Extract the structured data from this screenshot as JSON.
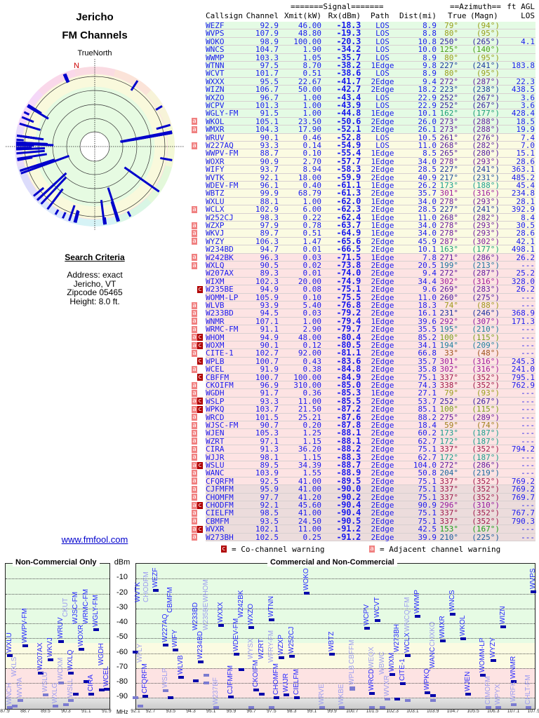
{
  "header": {
    "title_line1": "Jericho",
    "title_line2": "FM Channels",
    "north_label": "TrueNorth",
    "north_marker": "N"
  },
  "search": {
    "heading": "Search Criteria",
    "lines": [
      "Address: exact",
      "Jericho, VT",
      "Zipcode 05465",
      "Height: 8.0 ft."
    ]
  },
  "link": {
    "label": "www.fmfool.com"
  },
  "table": {
    "group_signal": "=======Signal=======",
    "group_azimuth": "==Azimuth==",
    "group_agl": "ft AGL",
    "columns": [
      "Callsign",
      "Channel",
      "Xmit(kW)",
      "Rx(dBm)",
      "Path",
      "Dist(mi)",
      "True",
      "(Magn)",
      "LOS"
    ],
    "rows": [
      [
        "WEZF",
        "92.9",
        "46.00",
        "-18.3",
        "LOS",
        "8.9",
        "79°",
        "(94°)",
        "",
        ""
      ],
      [
        "WVPS",
        "107.9",
        "48.80",
        "-19.3",
        "LOS",
        "8.8",
        "80°",
        "(95°)",
        "",
        ""
      ],
      [
        "WOKO",
        "98.9",
        "100.00",
        "-20.3",
        "LOS",
        "10.8",
        "250°",
        "(265°)",
        "4.1",
        ""
      ],
      [
        "WNCS",
        "104.7",
        "1.90",
        "-34.2",
        "LOS",
        "10.0",
        "125°",
        "(140°)",
        "",
        ""
      ],
      [
        "WWMP",
        "103.3",
        "1.05",
        "-35.7",
        "LOS",
        "8.9",
        "80°",
        "(95°)",
        "",
        ""
      ],
      [
        "WTNN",
        "97.5",
        "8.70",
        "-38.2",
        "1Edge",
        "9.8",
        "227°",
        "(241°)",
        "183.8",
        ""
      ],
      [
        "WCVT",
        "101.7",
        "0.51",
        "-38.6",
        "LOS",
        "8.9",
        "80°",
        "(95°)",
        "",
        ""
      ],
      [
        "WXXX",
        "95.5",
        "22.67",
        "-41.7",
        "2Edge",
        "9.4",
        "272°",
        "(287°)",
        "22.3",
        ""
      ],
      [
        "WIZN",
        "106.7",
        "50.00",
        "-42.7",
        "2Edge",
        "18.2",
        "223°",
        "(238°)",
        "438.5",
        ""
      ],
      [
        "WXZO",
        "96.7",
        "1.00",
        "-43.4",
        "LOS",
        "22.9",
        "252°",
        "(267°)",
        "3.6",
        ""
      ],
      [
        "WCPV",
        "101.3",
        "1.00",
        "-43.9",
        "LOS",
        "22.9",
        "252°",
        "(267°)",
        "3.6",
        ""
      ],
      [
        "WGLY-FM",
        "91.5",
        "1.00",
        "-44.8",
        "1Edge",
        "10.1",
        "162°",
        "(177°)",
        "428.4",
        ""
      ],
      [
        "WKOL",
        "105.1",
        "23.50",
        "-50.6",
        "2Edge",
        "26.0",
        "273°",
        "(288°)",
        "18.5",
        "a"
      ],
      [
        "WMXR",
        "104.3",
        "17.90",
        "-52.1",
        "2Edge",
        "26.1",
        "273°",
        "(288°)",
        "19.9",
        "a"
      ],
      [
        "WRUV",
        "90.1",
        "0.46",
        "-52.8",
        "LOS",
        "10.5",
        "261°",
        "(276°)",
        "7.4",
        ""
      ],
      [
        "W227AQ",
        "93.3",
        "0.14",
        "-54.9",
        "LOS",
        "11.0",
        "268°",
        "(282°)",
        "7.0",
        "a"
      ],
      [
        "WWPV-FM",
        "88.7",
        "0.10",
        "-55.4",
        "1Edge",
        "8.5",
        "265°",
        "(280°)",
        "15.1",
        ""
      ],
      [
        "WOXR",
        "90.9",
        "2.70",
        "-57.7",
        "1Edge",
        "34.0",
        "278°",
        "(293°)",
        "28.6",
        ""
      ],
      [
        "WIFY",
        "93.7",
        "8.94",
        "-58.3",
        "2Edge",
        "28.5",
        "227°",
        "(241°)",
        "363.1",
        ""
      ],
      [
        "WVTK",
        "92.1",
        "18.00",
        "-59.9",
        "2Edge",
        "40.9",
        "217°",
        "(231°)",
        "485.2",
        ""
      ],
      [
        "WDEV-FM",
        "96.1",
        "0.40",
        "-61.1",
        "1Edge",
        "26.2",
        "173°",
        "(188°)",
        "45.4",
        ""
      ],
      [
        "WBTZ",
        "99.9",
        "68.79",
        "-61.3",
        "2Edge",
        "35.7",
        "301°",
        "(316°)",
        "234.8",
        ""
      ],
      [
        "WXLU",
        "88.1",
        "1.00",
        "-62.0",
        "1Edge",
        "34.0",
        "278°",
        "(293°)",
        "28.1",
        ""
      ],
      [
        "WCLX",
        "102.9",
        "6.00",
        "-62.3",
        "2Edge",
        "28.5",
        "227°",
        "(241°)",
        "392.9",
        "a"
      ],
      [
        "W252CJ",
        "98.3",
        "0.22",
        "-62.4",
        "1Edge",
        "11.0",
        "268°",
        "(282°)",
        "8.4",
        ""
      ],
      [
        "WZXP",
        "97.9",
        "0.78",
        "-63.7",
        "1Edge",
        "34.0",
        "278°",
        "(293°)",
        "30.5",
        "a"
      ],
      [
        "WKVJ",
        "89.7",
        "0.51",
        "-64.9",
        "1Edge",
        "34.0",
        "278°",
        "(293°)",
        "28.6",
        "a"
      ],
      [
        "WYZY",
        "106.3",
        "1.47",
        "-65.6",
        "2Edge",
        "45.9",
        "287°",
        "(302°)",
        "42.1",
        "a"
      ],
      [
        "W234BD",
        "94.7",
        "0.01",
        "-66.5",
        "2Edge",
        "10.1",
        "163°",
        "(177°)",
        "498.1",
        ""
      ],
      [
        "W242BK",
        "96.3",
        "0.03",
        "-71.5",
        "1Edge",
        "7.8",
        "271°",
        "(286°)",
        "26.2",
        "a"
      ],
      [
        "WXLQ",
        "90.5",
        "0.02",
        "-73.8",
        "2Edge",
        "20.5",
        "199°",
        "(213°)",
        "---",
        "a"
      ],
      [
        "W207AX",
        "89.3",
        "0.01",
        "-74.0",
        "2Edge",
        "9.4",
        "272°",
        "(287°)",
        "25.2",
        ""
      ],
      [
        "WIXM",
        "102.3",
        "20.00",
        "-74.9",
        "2Edge",
        "34.4",
        "302°",
        "(316°)",
        "328.0",
        ""
      ],
      [
        "W235BE",
        "94.9",
        "0.08",
        "-75.1",
        "2Edge",
        "9.6",
        "269°",
        "(283°)",
        "26.2",
        "c"
      ],
      [
        "WOMM-LP",
        "105.9",
        "0.10",
        "-75.5",
        "2Edge",
        "11.0",
        "260°",
        "(275°)",
        "---",
        ""
      ],
      [
        "WLVB",
        "93.9",
        "5.40",
        "-76.8",
        "2Edge",
        "18.3",
        "74°",
        "(88°)",
        "---",
        "a"
      ],
      [
        "W233BD",
        "94.5",
        "0.03",
        "-79.2",
        "2Edge",
        "16.1",
        "231°",
        "(246°)",
        "368.9",
        "a"
      ],
      [
        "WNMR",
        "107.1",
        "1.00",
        "-79.4",
        "1Edge",
        "39.6",
        "292°",
        "(307°)",
        "171.3",
        "a"
      ],
      [
        "WRMC-FM",
        "91.1",
        "2.90",
        "-79.7",
        "2Edge",
        "35.5",
        "195°",
        "(210°)",
        "---",
        "a"
      ],
      [
        "WHOM",
        "94.9",
        "48.00",
        "-80.4",
        "2Edge",
        "85.2",
        "100°",
        "(115°)",
        "---",
        "ac"
      ],
      [
        "WOXM",
        "90.1",
        "0.12",
        "-80.5",
        "2Edge",
        "34.1",
        "194°",
        "(209°)",
        "---",
        "ac"
      ],
      [
        "CITE-1",
        "102.7",
        "92.00",
        "-81.1",
        "2Edge",
        "66.8",
        "33°",
        "(48°)",
        "---",
        "a"
      ],
      [
        "WPLB",
        "100.7",
        "0.43",
        "-83.6",
        "2Edge",
        "35.7",
        "301°",
        "(316°)",
        "245.3",
        "c"
      ],
      [
        "WCEL",
        "91.9",
        "0.38",
        "-84.8",
        "2Edge",
        "35.8",
        "302°",
        "(316°)",
        "241.0",
        "a"
      ],
      [
        "CBFFM",
        "100.7",
        "100.00",
        "-84.9",
        "2Edge",
        "75.1",
        "337°",
        "(352°)",
        "795.1",
        "c"
      ],
      [
        "CKOIFM",
        "96.9",
        "310.00",
        "-85.0",
        "2Edge",
        "74.3",
        "338°",
        "(352°)",
        "762.9",
        "a"
      ],
      [
        "WGDH",
        "91.7",
        "0.36",
        "-85.3",
        "1Edge",
        "27.1",
        "79°",
        "(93°)",
        "---",
        "a"
      ],
      [
        "WSLP",
        "93.3",
        "11.00",
        "-85.5",
        "2Edge",
        "53.7",
        "252°",
        "(267°)",
        "---",
        "ac"
      ],
      [
        "WPKQ",
        "103.7",
        "21.50",
        "-87.2",
        "2Edge",
        "85.1",
        "100°",
        "(115°)",
        "---",
        "ac"
      ],
      [
        "WRCD",
        "101.5",
        "25.21",
        "-87.6",
        "2Edge",
        "88.2",
        "275°",
        "(289°)",
        "---",
        "a"
      ],
      [
        "WJSC-FM",
        "90.7",
        "0.20",
        "-87.8",
        "2Edge",
        "18.4",
        "59°",
        "(74°)",
        "---",
        "a"
      ],
      [
        "WJEN",
        "105.3",
        "1.25",
        "-88.1",
        "2Edge",
        "60.2",
        "173°",
        "(187°)",
        "---",
        "a"
      ],
      [
        "WZRT",
        "97.1",
        "1.15",
        "-88.1",
        "2Edge",
        "62.7",
        "172°",
        "(187°)",
        "---",
        "a"
      ],
      [
        "CIRA",
        "91.3",
        "36.20",
        "-88.2",
        "2Edge",
        "75.1",
        "337°",
        "(352°)",
        "794.2",
        "a"
      ],
      [
        "WJJR",
        "98.1",
        "1.15",
        "-88.3",
        "2Edge",
        "62.7",
        "172°",
        "(187°)",
        "---",
        "a"
      ],
      [
        "WSLU",
        "89.5",
        "34.39",
        "-88.7",
        "2Edge",
        "104.0",
        "272°",
        "(286°)",
        "---",
        "ac"
      ],
      [
        "WANC",
        "103.9",
        "1.55",
        "-88.9",
        "2Edge",
        "50.8",
        "204°",
        "(219°)",
        "---",
        "a"
      ],
      [
        "CFQRFM",
        "92.5",
        "41.00",
        "-89.5",
        "2Edge",
        "75.1",
        "337°",
        "(352°)",
        "769.2",
        "a"
      ],
      [
        "CJFMFM",
        "95.9",
        "41.00",
        "-90.0",
        "2Edge",
        "75.1",
        "337°",
        "(352°)",
        "769.2",
        "a"
      ],
      [
        "CHOMFM",
        "97.7",
        "41.20",
        "-90.2",
        "2Edge",
        "75.1",
        "337°",
        "(352°)",
        "769.7",
        "a"
      ],
      [
        "CHODFM",
        "92.1",
        "45.60",
        "-90.4",
        "2Edge",
        "90.9",
        "296°",
        "(310°)",
        "---",
        "ac"
      ],
      [
        "CIELFM",
        "98.5",
        "41.00",
        "-90.4",
        "2Edge",
        "75.1",
        "337°",
        "(352°)",
        "767.7",
        "a"
      ],
      [
        "CBMFM",
        "93.5",
        "24.50",
        "-90.5",
        "2Edge",
        "75.1",
        "337°",
        "(352°)",
        "790.3",
        "a"
      ],
      [
        "WVXR",
        "102.1",
        "11.00",
        "-91.2",
        "2Edge",
        "42.5",
        "153°",
        "(167°)",
        "---",
        "ac"
      ],
      [
        "W273BH",
        "102.5",
        "0.25",
        "-91.2",
        "2Edge",
        "39.9",
        "210°",
        "(225°)",
        "---",
        "a"
      ]
    ]
  },
  "legend": {
    "co_symbol": "c",
    "co_label": "= Co-channel warning",
    "adj_symbol": "a",
    "adj_label": "= Adjacent channel warning"
  },
  "colors": {
    "text_blue": "#1a1aee",
    "bar_blue": "#0000cc",
    "co_channel": "#b00000",
    "adjacent": "#f08080",
    "strong_bg": "#e4fbe4",
    "medium_bg": "#fbfbe2",
    "weak_bg": "#fde3e3",
    "very_weak_bg": "#ecdcdc"
  },
  "chart_data": {
    "type": "scatter",
    "ylabel": "dBm",
    "xunit": "MHz",
    "ylim": [
      -98,
      0
    ],
    "yticks": [
      "-10",
      "-20",
      "-30",
      "-40",
      "-50",
      "-60",
      "-70",
      "-80",
      "-90"
    ],
    "panels": [
      {
        "title": "Non-Commercial Only",
        "xlim": [
          87.9,
          91.9
        ],
        "xticks": [
          "87.9",
          "88.7",
          "89.5",
          "90.3",
          "91.1",
          "91.9"
        ]
      },
      {
        "title": "Commercial and Non-Commercial",
        "xlim": [
          92.1,
          107.9
        ],
        "xticks": [
          "92.1",
          "92.7",
          "93.5",
          "94.3",
          "95.1",
          "95.9",
          "96.7",
          "97.5",
          "98.3",
          "99.1",
          "99.9",
          "100.7",
          "101.5",
          "102.3",
          "103.1",
          "103.9",
          "104.7",
          "105.5",
          "106.3",
          "107.1",
          "107.9"
        ]
      }
    ],
    "points": [
      [
        "WEZF",
        92.9,
        -18.3,
        0
      ],
      [
        "WVPS",
        107.9,
        -19.3,
        0
      ],
      [
        "WOKO",
        98.9,
        -20.3,
        0
      ],
      [
        "WNCS",
        104.7,
        -34.2,
        0
      ],
      [
        "WWMP",
        103.3,
        -35.7,
        0
      ],
      [
        "WTNN",
        97.5,
        -38.2,
        0
      ],
      [
        "WCVT",
        101.7,
        -38.6,
        0
      ],
      [
        "WXXX",
        95.5,
        -41.7,
        0
      ],
      [
        "WIZN",
        106.7,
        -42.7,
        0
      ],
      [
        "WXZO",
        96.7,
        -43.4,
        0
      ],
      [
        "WCPV",
        101.3,
        -43.9,
        0
      ],
      [
        "WGLY-FM",
        91.5,
        -44.8,
        0
      ],
      [
        "WKOL",
        105.1,
        -50.6,
        0
      ],
      [
        "WMXR",
        104.3,
        -52.1,
        0
      ],
      [
        "WRUV",
        90.1,
        -52.8,
        0
      ],
      [
        "W227AQ",
        93.3,
        -54.9,
        0
      ],
      [
        "WWPV-FM",
        88.7,
        -55.4,
        0
      ],
      [
        "WOXR",
        90.9,
        -57.7,
        0
      ],
      [
        "WIFY",
        93.7,
        -58.3,
        0
      ],
      [
        "WVTK",
        92.1,
        -59.9,
        0
      ],
      [
        "WDEV-FM",
        96.1,
        -61.1,
        0
      ],
      [
        "WBTZ",
        99.9,
        -61.3,
        0
      ],
      [
        "WXLU",
        88.1,
        -62.0,
        0
      ],
      [
        "WCLX",
        102.9,
        -62.3,
        0
      ],
      [
        "W252CJ",
        98.3,
        -62.4,
        0
      ],
      [
        "WZXP",
        97.9,
        -63.7,
        0
      ],
      [
        "WKVJ",
        89.7,
        -64.9,
        0
      ],
      [
        "WYZY",
        106.3,
        -65.6,
        0
      ],
      [
        "W234BD",
        94.7,
        -66.5,
        0
      ],
      [
        "W242BK",
        96.3,
        -71.5,
        0
      ],
      [
        "WXLQ",
        90.5,
        -73.8,
        0
      ],
      [
        "W207AX",
        89.3,
        -74.0,
        0
      ],
      [
        "WIXM",
        102.3,
        -74.9,
        0
      ],
      [
        "W235BE",
        94.9,
        -75.1,
        1
      ],
      [
        "WOMM-LP",
        105.9,
        -75.5,
        0
      ],
      [
        "WLVB",
        93.9,
        -76.8,
        0
      ],
      [
        "W233BD",
        94.5,
        -79.2,
        0
      ],
      [
        "WNMR",
        107.1,
        -79.4,
        0
      ],
      [
        "WRMC-FM",
        91.1,
        -79.7,
        0
      ],
      [
        "WHOM",
        94.9,
        -80.4,
        1
      ],
      [
        "WOXM",
        90.1,
        -80.5,
        1
      ],
      [
        "CITE-1",
        102.7,
        -81.1,
        0
      ],
      [
        "WPLB",
        100.7,
        -83.6,
        1
      ],
      [
        "WCEL",
        91.9,
        -84.8,
        0
      ],
      [
        "CBFFM",
        100.7,
        -84.9,
        1
      ],
      [
        "CKOIFM",
        96.9,
        -85.0,
        0
      ],
      [
        "WGDH",
        91.7,
        -85.3,
        0
      ],
      [
        "WSLP",
        93.3,
        -85.5,
        1
      ],
      [
        "WPKQ",
        103.7,
        -87.2,
        0
      ],
      [
        "WRCD",
        101.5,
        -87.6,
        0
      ],
      [
        "WJSC-FM",
        90.7,
        -87.8,
        0
      ],
      [
        "WJEN",
        105.3,
        -88.1,
        0
      ],
      [
        "WZRT",
        97.1,
        -88.1,
        0
      ],
      [
        "CIRA",
        91.3,
        -88.2,
        0
      ],
      [
        "WJJR",
        98.1,
        -88.3,
        0
      ],
      [
        "WSLU",
        89.5,
        -88.7,
        1
      ],
      [
        "WANC",
        103.9,
        -88.9,
        0
      ],
      [
        "CFQRFM",
        92.5,
        -89.5,
        0
      ],
      [
        "CJFMFM",
        95.9,
        -90.0,
        0
      ],
      [
        "CHOMFM",
        97.7,
        -90.2,
        0
      ],
      [
        "CHODFM",
        92.1,
        -90.4,
        1
      ],
      [
        "CIELFM",
        98.5,
        -90.4,
        0
      ],
      [
        "CBMFM",
        93.5,
        -90.5,
        0
      ],
      [
        "WVXR",
        102.1,
        -91.2,
        1
      ],
      [
        "W273BH",
        102.5,
        -91.2,
        0
      ],
      [
        "WNCH",
        88.1,
        -97,
        1
      ],
      [
        "WXLS",
        88.3,
        -96,
        1
      ],
      [
        "WVPA",
        88.5,
        -92,
        1
      ],
      [
        "WXLG",
        89.9,
        -96,
        1
      ],
      [
        "CKUT",
        90.3,
        -95,
        1
      ],
      [
        "WSLL",
        90.5,
        -92,
        1
      ],
      [
        "WFLY",
        92.3,
        -96,
        1
      ],
      [
        "W237BF",
        95.3,
        -99,
        1
      ],
      [
        "WYSX",
        96.7,
        -97,
        1
      ],
      [
        "WFRY-FM",
        97.5,
        -97,
        1
      ],
      [
        "WRVE",
        99.5,
        -97,
        1
      ],
      [
        "WKBE",
        100.3,
        -97,
        1
      ],
      [
        "WEQX",
        101.5,
        -99,
        1
      ],
      [
        "WBWC",
        101.9,
        -98,
        1
      ],
      [
        "WNCQ-FM",
        102.9,
        -92,
        1
      ],
      [
        "CHXKO",
        103.9,
        -92,
        1
      ],
      [
        "CIMOFM",
        106.1,
        -99,
        1
      ],
      [
        "WPYX",
        106.5,
        -99,
        1
      ],
      [
        "WRFK",
        107.1,
        -95,
        1
      ],
      [
        "CHLT-FM",
        107.7,
        -98,
        1
      ]
    ]
  }
}
